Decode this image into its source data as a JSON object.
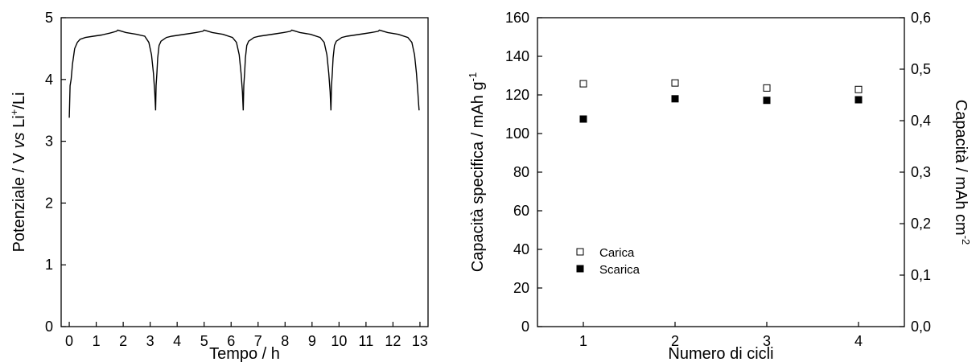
{
  "chart_data": [
    {
      "type": "line",
      "xlabel": "Tempo / h",
      "ylabel": {
        "prefix": "Potenziale / V ",
        "italic": "vs",
        "mid": " Li",
        "sup": "+",
        "suffix": "/Li"
      },
      "xlim": [
        -0.3,
        13.3
      ],
      "ylim": [
        0,
        5
      ],
      "xticks": [
        0,
        1,
        2,
        3,
        4,
        5,
        6,
        7,
        8,
        9,
        10,
        11,
        12,
        13
      ],
      "yticks": [
        0,
        1,
        2,
        3,
        4,
        5
      ],
      "series": [
        {
          "color": "#000000",
          "x": [
            0.0,
            0.03,
            0.07,
            0.12,
            0.2,
            0.3,
            0.4,
            0.6,
            0.9,
            1.2,
            1.5,
            1.75,
            1.8,
            2.1,
            2.5,
            2.8,
            2.95,
            3.05,
            3.12,
            3.17,
            3.2,
            3.22,
            3.25,
            3.28,
            3.33,
            3.4,
            3.5,
            3.6,
            3.8,
            4.1,
            4.4,
            4.7,
            4.95,
            5.0,
            5.3,
            5.7,
            6.05,
            6.2,
            6.3,
            6.37,
            6.42,
            6.45,
            6.47,
            6.5,
            6.53,
            6.58,
            6.65,
            6.75,
            6.85,
            7.05,
            7.35,
            7.65,
            7.95,
            8.2,
            8.25,
            8.55,
            8.95,
            9.3,
            9.45,
            9.55,
            9.62,
            9.67,
            9.7,
            9.72,
            9.75,
            9.78,
            9.83,
            9.9,
            10.0,
            10.1,
            10.3,
            10.6,
            10.9,
            11.2,
            11.45,
            11.5,
            11.8,
            12.2,
            12.55,
            12.7,
            12.8,
            12.87,
            12.92,
            12.95,
            12.97
          ],
          "y": [
            3.38,
            3.9,
            4.0,
            4.25,
            4.5,
            4.6,
            4.65,
            4.68,
            4.7,
            4.72,
            4.75,
            4.78,
            4.8,
            4.76,
            4.73,
            4.7,
            4.6,
            4.4,
            4.1,
            3.8,
            3.5,
            3.9,
            4.1,
            4.35,
            4.55,
            4.62,
            4.65,
            4.68,
            4.7,
            4.72,
            4.74,
            4.76,
            4.78,
            4.8,
            4.76,
            4.73,
            4.68,
            4.6,
            4.4,
            4.1,
            3.8,
            3.5,
            3.9,
            4.1,
            4.35,
            4.55,
            4.62,
            4.65,
            4.68,
            4.7,
            4.72,
            4.74,
            4.76,
            4.78,
            4.8,
            4.76,
            4.73,
            4.68,
            4.6,
            4.4,
            4.1,
            3.8,
            3.5,
            3.9,
            4.1,
            4.35,
            4.55,
            4.62,
            4.65,
            4.68,
            4.7,
            4.72,
            4.74,
            4.76,
            4.78,
            4.8,
            4.76,
            4.73,
            4.68,
            4.6,
            4.4,
            4.1,
            3.8,
            3.6,
            3.5
          ]
        }
      ]
    },
    {
      "type": "scatter",
      "xlabel": "Numero di cicli",
      "ylabel": {
        "text": "Capacità specifica / mAh g",
        "sup": "-1"
      },
      "y2label": {
        "text": "Capacità / mAh cm",
        "sup": "-2"
      },
      "xlim": [
        0.5,
        4.5
      ],
      "ylim": [
        0,
        160
      ],
      "y2lim": [
        0,
        0.6
      ],
      "xticks": [
        1,
        2,
        3,
        4
      ],
      "yticks": [
        0,
        20,
        40,
        60,
        80,
        100,
        120,
        140,
        160
      ],
      "y2ticks": [
        "0,0",
        "0,1",
        "0,2",
        "0,3",
        "0,4",
        "0,5",
        "0,6"
      ],
      "legend_position": "bottom-left",
      "series": [
        {
          "name": "Carica",
          "marker": "open-square",
          "x": [
            1,
            2,
            3,
            4
          ],
          "values": [
            125.8,
            126.2,
            123.6,
            122.8
          ]
        },
        {
          "name": "Scarica",
          "marker": "filled-square",
          "x": [
            1,
            2,
            3,
            4
          ],
          "values": [
            107.5,
            118.0,
            117.2,
            117.5
          ]
        }
      ]
    }
  ]
}
